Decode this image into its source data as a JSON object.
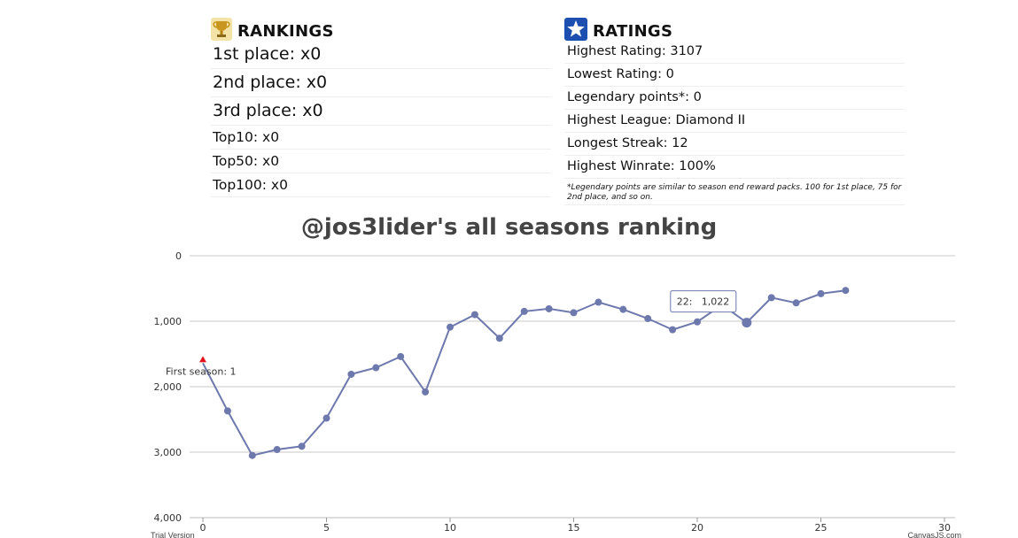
{
  "rankings": {
    "title": "RANKINGS",
    "rows": [
      "1st place: x0",
      "2nd place: x0",
      "3rd place: x0",
      "Top10: x0",
      "Top50: x0",
      "Top100: x0"
    ]
  },
  "ratings": {
    "title": "RATINGS",
    "rows": [
      "Highest Rating: 3107",
      "Lowest Rating: 0",
      "Legendary points*: 0",
      "Highest League: Diamond II",
      "Longest Streak: 12",
      "Highest Winrate: 100%"
    ],
    "footnote": "*Legendary points are similar to season end reward packs. 100 for 1st place, 75 for 2nd place, and so on."
  },
  "chart_data": {
    "type": "line",
    "title": "@jos3lider's all seasons ranking",
    "xlabel": "",
    "ylabel": "",
    "x_ticks": [
      "0",
      "5",
      "10",
      "15",
      "20",
      "25",
      "30"
    ],
    "y_ticks": [
      "0",
      "1,000",
      "2,000",
      "3,000",
      "4,000"
    ],
    "xlim": [
      0,
      30
    ],
    "ylim": [
      0,
      4000
    ],
    "y_reversed": true,
    "grid": true,
    "color": "#6d78ad",
    "x": [
      0,
      1,
      2,
      3,
      4,
      5,
      6,
      7,
      8,
      9,
      10,
      11,
      12,
      13,
      14,
      15,
      16,
      17,
      18,
      19,
      20,
      21,
      22,
      23,
      24,
      25,
      26
    ],
    "values": [
      1640,
      2370,
      3050,
      2960,
      2910,
      2480,
      1810,
      1710,
      1540,
      2080,
      1090,
      900,
      1260,
      850,
      810,
      870,
      710,
      820,
      960,
      1130,
      1010,
      750,
      1022,
      640,
      720,
      580,
      530
    ],
    "annotation": {
      "x": 0,
      "y": 1640,
      "text": "First season: 1",
      "marker_color": "#e1141b"
    },
    "tooltip": {
      "x_label": "22:",
      "value": "1,022",
      "x": 22
    },
    "credits": {
      "left": "Trial Version",
      "right": "CanvasJS.com"
    }
  }
}
